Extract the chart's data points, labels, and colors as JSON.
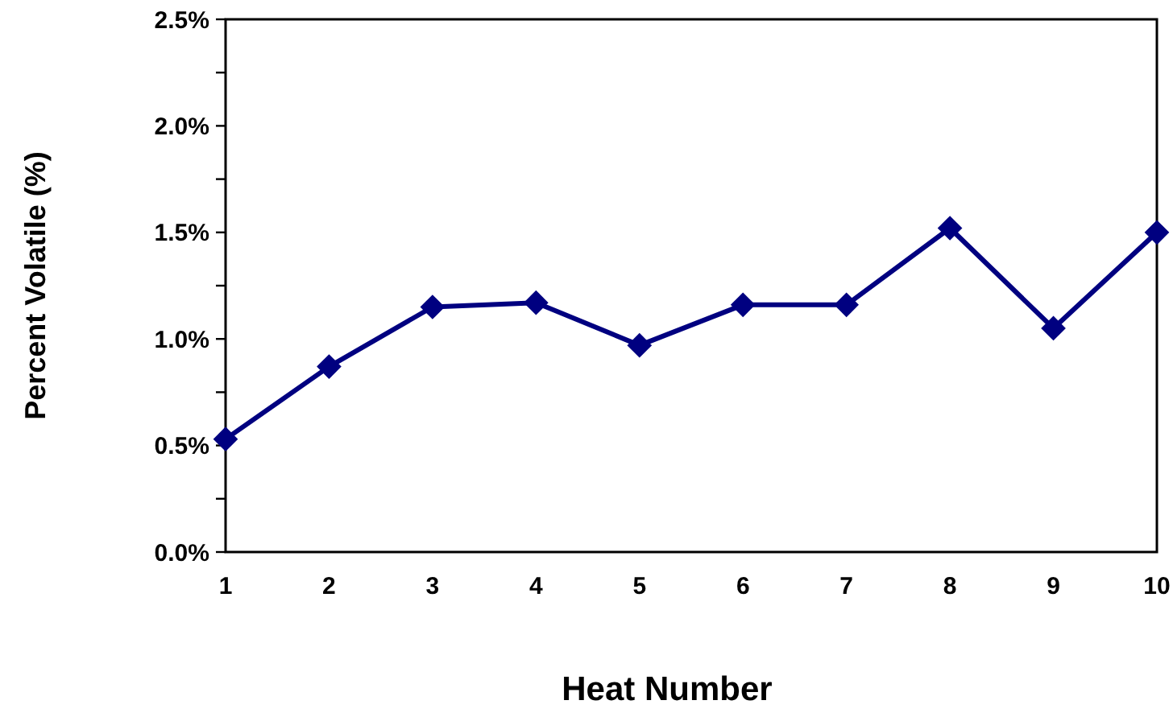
{
  "chart_data": {
    "type": "line",
    "xlabel": "Heat Number",
    "ylabel": "Percent Volatile (%)",
    "categories": [
      "1",
      "2",
      "3",
      "4",
      "5",
      "6",
      "7",
      "8",
      "9",
      "10"
    ],
    "series": [
      {
        "color": "#000080",
        "values": [
          0.53,
          0.87,
          1.15,
          1.17,
          0.97,
          1.16,
          1.16,
          1.52,
          1.05,
          1.5
        ]
      }
    ],
    "ylim": [
      0,
      2.5
    ],
    "yticks": [
      {
        "value": 0,
        "label": "0.0%"
      },
      {
        "value": 0.25,
        "label": null
      },
      {
        "value": 0.5,
        "label": "0.5%"
      },
      {
        "value": 0.75,
        "label": null
      },
      {
        "value": 1,
        "label": "1.0%"
      },
      {
        "value": 1.25,
        "label": null
      },
      {
        "value": 1.5,
        "label": "1.5%"
      },
      {
        "value": 1.75,
        "label": null
      },
      {
        "value": 2,
        "label": "2.0%"
      },
      {
        "value": 2.25,
        "label": null
      },
      {
        "value": 2.5,
        "label": "2.5%"
      }
    ],
    "marker": "diamond",
    "line_style": "solid"
  }
}
